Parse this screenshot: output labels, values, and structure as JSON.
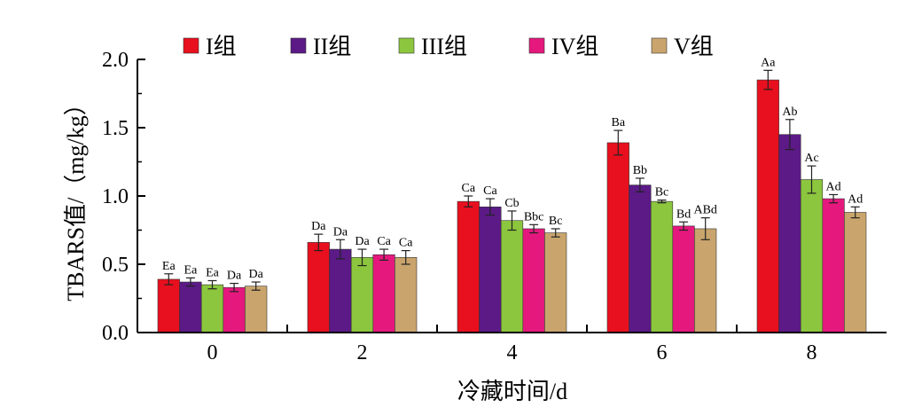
{
  "chart_data": {
    "type": "bar",
    "title": "",
    "xlabel": "冷藏时间/d",
    "ylabel": "TBARS值/（mg/kg）",
    "categories": [
      "0",
      "2",
      "4",
      "6",
      "8"
    ],
    "ylim": [
      0,
      2.0
    ],
    "yticks": [
      "0.0",
      "0.5",
      "1.0",
      "1.5",
      "2.0"
    ],
    "legend_position": "top",
    "grid": false,
    "series": [
      {
        "name": "I组",
        "color": "#e8101e",
        "values": [
          0.39,
          0.66,
          0.96,
          1.39,
          1.85
        ],
        "errors": [
          0.04,
          0.06,
          0.04,
          0.09,
          0.07
        ],
        "labels": [
          "Ea",
          "Da",
          "Ca",
          "Ba",
          "Aa"
        ]
      },
      {
        "name": "II组",
        "color": "#5b1a86",
        "values": [
          0.37,
          0.61,
          0.92,
          1.08,
          1.45
        ],
        "errors": [
          0.03,
          0.07,
          0.06,
          0.05,
          0.11
        ],
        "labels": [
          "Ea",
          "Da",
          "Ca",
          "Bb",
          "Ab"
        ]
      },
      {
        "name": "III组",
        "color": "#8cc63e",
        "values": [
          0.35,
          0.55,
          0.82,
          0.96,
          1.12
        ],
        "errors": [
          0.03,
          0.06,
          0.07,
          0.01,
          0.1
        ],
        "labels": [
          "Ea",
          "Da",
          "Cb",
          "Bc",
          "Ac"
        ]
      },
      {
        "name": "IV组",
        "color": "#e5187d",
        "values": [
          0.33,
          0.57,
          0.76,
          0.78,
          0.98
        ],
        "errors": [
          0.03,
          0.04,
          0.03,
          0.03,
          0.03
        ],
        "labels": [
          "Da",
          "Ca",
          "Bbc",
          "Bd",
          "Ad"
        ]
      },
      {
        "name": "V组",
        "color": "#c9a56d",
        "values": [
          0.34,
          0.55,
          0.73,
          0.76,
          0.88
        ],
        "errors": [
          0.03,
          0.05,
          0.03,
          0.08,
          0.04
        ],
        "labels": [
          "Da",
          "Ca",
          "Bc",
          "ABd",
          "Ad"
        ]
      }
    ]
  }
}
